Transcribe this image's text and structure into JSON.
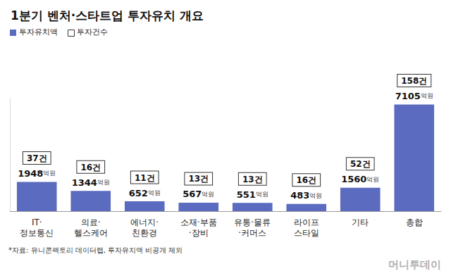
{
  "chart_data": {
    "type": "bar",
    "title": "1분기 벤처·스타트업 투자유치 개요",
    "categories": [
      "IT·\n정보통신",
      "의료·\n헬스케어",
      "에너지·\n친환경",
      "소재·부품\n·장비",
      "유통·물류\n·커머스",
      "라이프\n스타일",
      "기타",
      "총합"
    ],
    "series": [
      {
        "name": "투자유치액",
        "color": "#5b6bbf",
        "values": [
          1948,
          1344,
          652,
          567,
          551,
          483,
          1560,
          7105
        ],
        "value_labels": [
          "1948억원",
          "1344억원",
          "652억원",
          "567억원",
          "551억원",
          "483억원",
          "1560억원",
          "7105억원"
        ]
      },
      {
        "name": "투자건수",
        "color": "#ffffff",
        "values": [
          37,
          16,
          11,
          13,
          13,
          16,
          52,
          158
        ],
        "value_labels": [
          "37건",
          "16건",
          "11건",
          "13건",
          "13건",
          "16건",
          "52건",
          "158건"
        ]
      }
    ],
    "ylim": [
      0,
      7500
    ],
    "grid": false,
    "legend": "top-left",
    "data_labels": true,
    "tick_labels": "x",
    "source": "*자료: 유니콘팩토리 데이터랩, 투자유치액 비공개 제외",
    "credit": "머니투데이"
  }
}
